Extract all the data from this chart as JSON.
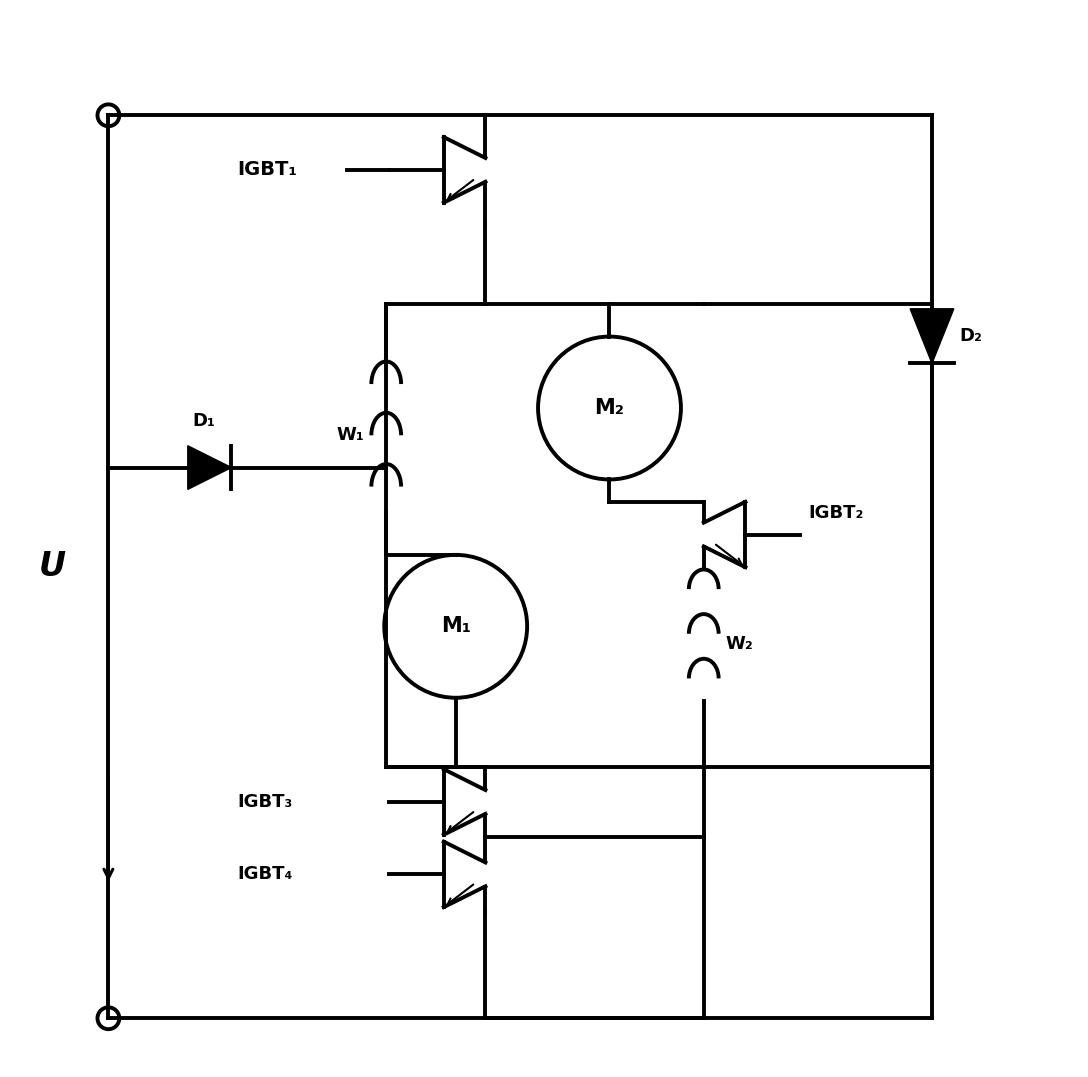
{
  "bg_color": "#ffffff",
  "lc": "#000000",
  "lw": 2.8,
  "labels": {
    "U": "U",
    "IGBT1": "IGBT₁",
    "IGBT2": "IGBT₂",
    "IGBT3": "IGBT₃",
    "IGBT4": "IGBT₄",
    "D1": "D₁",
    "D2": "D₂",
    "W1": "W₁",
    "W2": "W₂",
    "M1": "M₁",
    "M2": "M₂"
  }
}
